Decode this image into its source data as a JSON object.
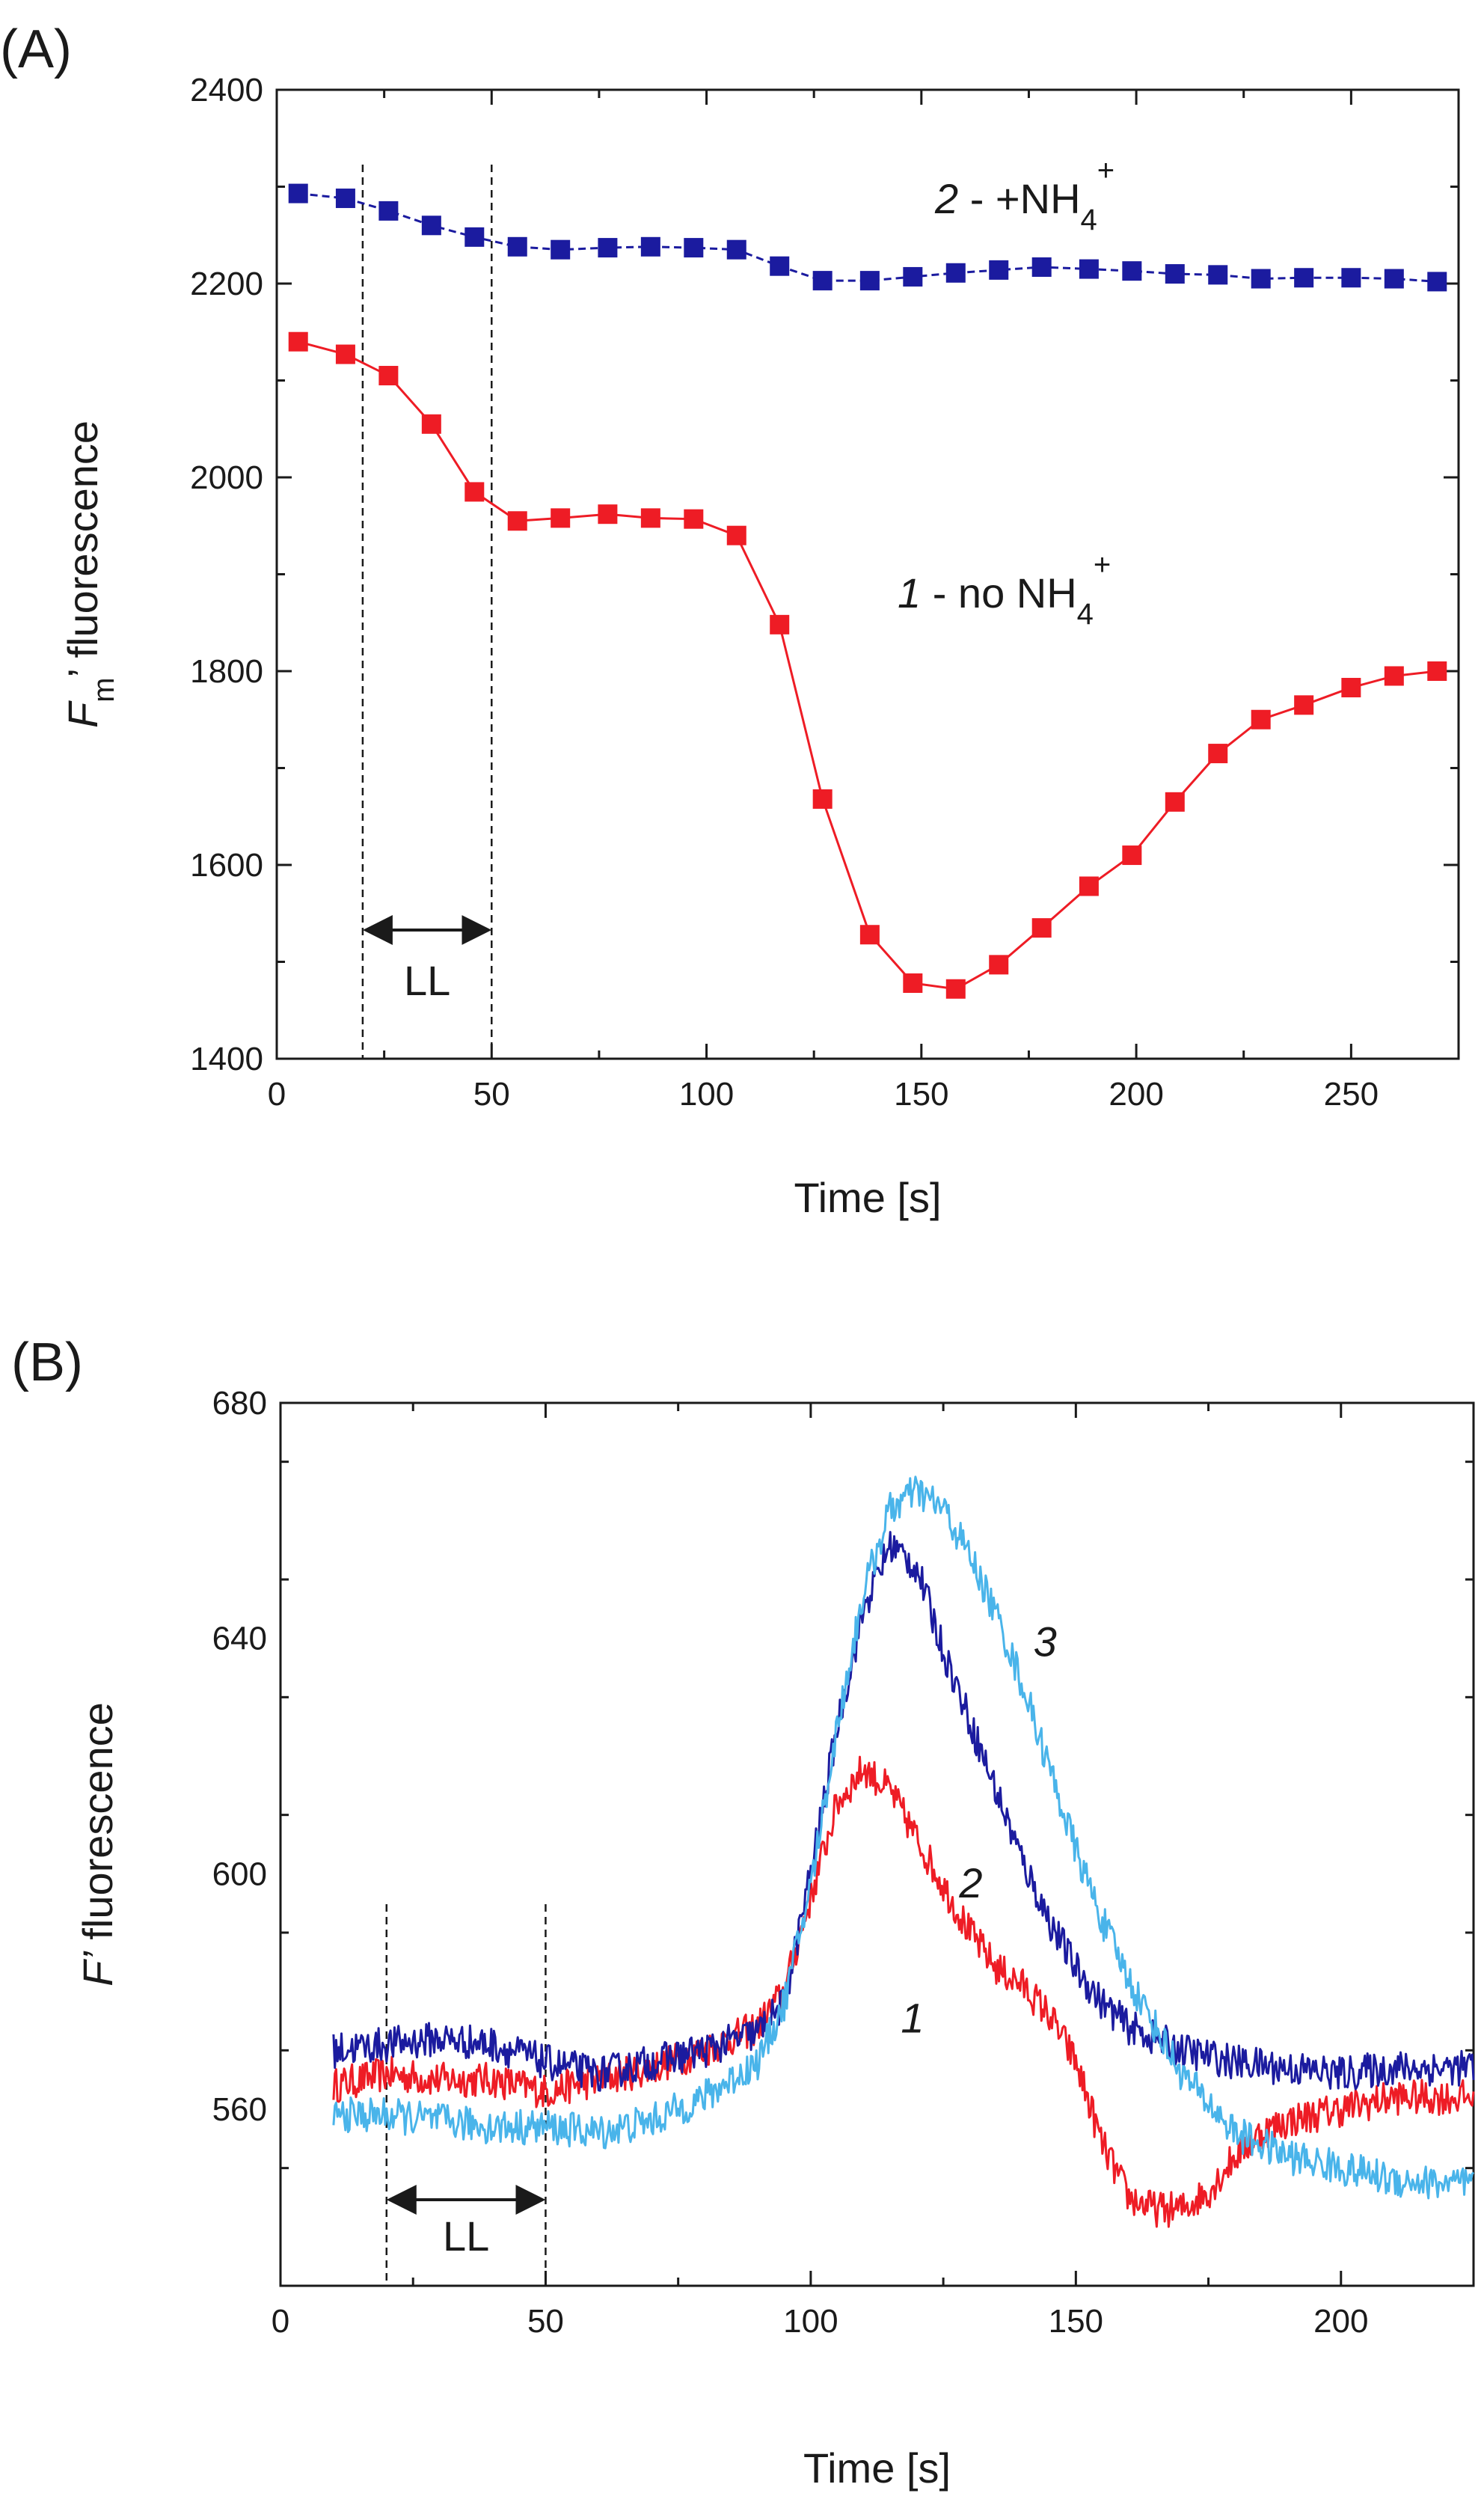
{
  "chart_data": [
    {
      "type": "line",
      "panel_label": "(A)",
      "xlabel": "Time [s]",
      "ylabel": {
        "italic": "F",
        "sub": "m",
        "rest": "’ fluorescence"
      },
      "xlim": [
        0,
        275
      ],
      "ylim": [
        1400,
        2400
      ],
      "xticks": [
        0,
        50,
        100,
        150,
        200,
        250
      ],
      "yticks": [
        1400,
        1600,
        1800,
        2000,
        2200,
        2400
      ],
      "markers": "square",
      "grid": false,
      "series": [
        {
          "key": "no_nh4",
          "label": {
            "num": "1",
            "text": " - no NH",
            "sub": "4",
            "sup": "+"
          },
          "color": "#ee1c25",
          "dashed": false,
          "x": [
            5,
            16,
            26,
            36,
            46,
            56,
            66,
            77,
            87,
            97,
            107,
            117,
            127,
            138,
            148,
            158,
            168,
            178,
            189,
            199,
            209,
            219,
            229,
            239,
            250,
            260,
            270
          ],
          "y": [
            2140,
            2127,
            2105,
            2055,
            1985,
            1955,
            1958,
            1962,
            1958,
            1957,
            1940,
            1848,
            1668,
            1528,
            1478,
            1472,
            1497,
            1535,
            1578,
            1610,
            1665,
            1715,
            1750,
            1765,
            1783,
            1795,
            1800
          ]
        },
        {
          "key": "plus_nh4",
          "label": {
            "num": "2",
            "text": " - +NH",
            "sub": "4",
            "sup": "+"
          },
          "color": "#1b1b9f",
          "dashed": true,
          "x": [
            5,
            16,
            26,
            36,
            46,
            56,
            66,
            77,
            87,
            97,
            107,
            117,
            127,
            138,
            148,
            158,
            168,
            178,
            189,
            199,
            209,
            219,
            229,
            239,
            250,
            260,
            270
          ],
          "y": [
            2293,
            2288,
            2275,
            2260,
            2248,
            2238,
            2235,
            2237,
            2238,
            2237,
            2235,
            2218,
            2203,
            2203,
            2207,
            2211,
            2214,
            2217,
            2215,
            2213,
            2210,
            2209,
            2205,
            2206,
            2206,
            2205,
            2202
          ]
        }
      ],
      "vlines": [
        20,
        50
      ],
      "annotation": {
        "text": "LL",
        "from": 20,
        "to": 50
      }
    },
    {
      "type": "line",
      "panel_label": "(B)",
      "xlabel": "Time [s]",
      "ylabel": {
        "italic": "F’",
        "rest": " fluorescence"
      },
      "xlim": [
        0,
        225
      ],
      "ylim": [
        530,
        680
      ],
      "xticks": [
        0,
        50,
        100,
        150,
        200
      ],
      "yticks": [
        560,
        600,
        640,
        680
      ],
      "grid": false,
      "series": [
        {
          "key": "trace_1",
          "label": "1",
          "color": "#ee1c25",
          "noise": 3,
          "x": [
            10,
            20,
            30,
            40,
            50,
            60,
            70,
            80,
            90,
            95,
            100,
            105,
            110,
            115,
            120,
            125,
            130,
            135,
            140,
            145,
            150,
            155,
            160,
            165,
            170,
            175,
            180,
            185,
            190,
            200,
            210,
            225
          ],
          "y": [
            564,
            566,
            565,
            565,
            563,
            565,
            567,
            570,
            574,
            580,
            596,
            612,
            618,
            614,
            606,
            598,
            590,
            584,
            581,
            576,
            568,
            554,
            545,
            543,
            543,
            546,
            552,
            556,
            558,
            560,
            562,
            562
          ]
        },
        {
          "key": "trace_2",
          "label": "2",
          "color": "#1b1b9f",
          "noise": 3,
          "x": [
            10,
            20,
            30,
            40,
            50,
            60,
            70,
            80,
            90,
            95,
            100,
            105,
            110,
            115,
            120,
            125,
            130,
            135,
            140,
            145,
            150,
            155,
            160,
            170,
            180,
            190,
            200,
            210,
            225
          ],
          "y": [
            570,
            571,
            572,
            571,
            568,
            566,
            568,
            570,
            573,
            578,
            600,
            625,
            645,
            656,
            652,
            638,
            626,
            614,
            602,
            592,
            584,
            578,
            574,
            570,
            568,
            567,
            566,
            567,
            567
          ]
        },
        {
          "key": "trace_3",
          "label": "3",
          "color": "#49b4ea",
          "noise": 3,
          "x": [
            10,
            20,
            30,
            40,
            50,
            60,
            70,
            80,
            90,
            95,
            100,
            105,
            110,
            115,
            120,
            125,
            130,
            135,
            140,
            145,
            150,
            155,
            160,
            170,
            180,
            190,
            200,
            210,
            225
          ],
          "y": [
            559,
            559,
            558,
            557,
            557,
            556,
            558,
            562,
            568,
            578,
            598,
            625,
            648,
            662,
            665,
            662,
            654,
            644,
            632,
            618,
            604,
            592,
            582,
            566,
            556,
            552,
            550,
            548,
            547
          ]
        }
      ],
      "label_positions": [
        [
          117,
          573
        ],
        [
          128,
          596
        ],
        [
          142,
          637
        ]
      ],
      "vlines": [
        20,
        50
      ],
      "annotation": {
        "text": "LL",
        "from": 20,
        "to": 50
      }
    }
  ]
}
